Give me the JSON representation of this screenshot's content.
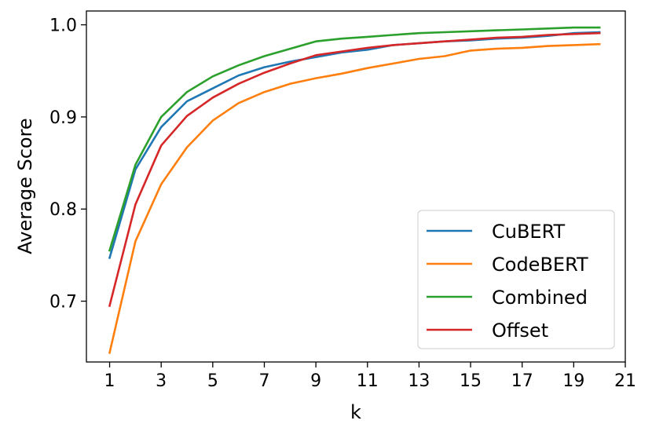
{
  "chart_data": {
    "type": "line",
    "xlabel": "k",
    "ylabel": "Average Score",
    "xlim": [
      0.1,
      21.0
    ],
    "ylim": [
      0.634,
      1.015
    ],
    "xticks": [
      1,
      3,
      5,
      7,
      9,
      11,
      13,
      15,
      17,
      19,
      21
    ],
    "yticks": [
      0.7,
      0.8,
      0.9,
      1.0
    ],
    "ytick_labels": [
      "0.7",
      "0.8",
      "0.9",
      "1.0"
    ],
    "grid": false,
    "legend_position": "lower-right",
    "x": [
      1,
      2,
      3,
      4,
      5,
      6,
      7,
      8,
      9,
      10,
      11,
      12,
      13,
      14,
      15,
      16,
      17,
      18,
      19,
      20
    ],
    "series": [
      {
        "name": "CuBERT",
        "color": "#1f77b4",
        "values": [
          0.747,
          0.843,
          0.889,
          0.917,
          0.931,
          0.945,
          0.954,
          0.96,
          0.965,
          0.97,
          0.973,
          0.978,
          0.98,
          0.982,
          0.983,
          0.985,
          0.986,
          0.988,
          0.991,
          0.992
        ]
      },
      {
        "name": "CodeBERT",
        "color": "#ff7f0e",
        "values": [
          0.644,
          0.765,
          0.827,
          0.867,
          0.896,
          0.915,
          0.927,
          0.936,
          0.942,
          0.947,
          0.953,
          0.958,
          0.963,
          0.966,
          0.972,
          0.974,
          0.975,
          0.977,
          0.978,
          0.979
        ]
      },
      {
        "name": "Combined",
        "color": "#2ca02c",
        "values": [
          0.755,
          0.848,
          0.9,
          0.927,
          0.944,
          0.956,
          0.966,
          0.974,
          0.982,
          0.985,
          0.987,
          0.989,
          0.991,
          0.992,
          0.993,
          0.994,
          0.995,
          0.996,
          0.997,
          0.997
        ]
      },
      {
        "name": "Offset",
        "color": "#d62728",
        "values": [
          0.695,
          0.805,
          0.869,
          0.901,
          0.921,
          0.936,
          0.948,
          0.958,
          0.967,
          0.971,
          0.975,
          0.978,
          0.98,
          0.982,
          0.984,
          0.986,
          0.987,
          0.989,
          0.99,
          0.991
        ]
      }
    ]
  }
}
